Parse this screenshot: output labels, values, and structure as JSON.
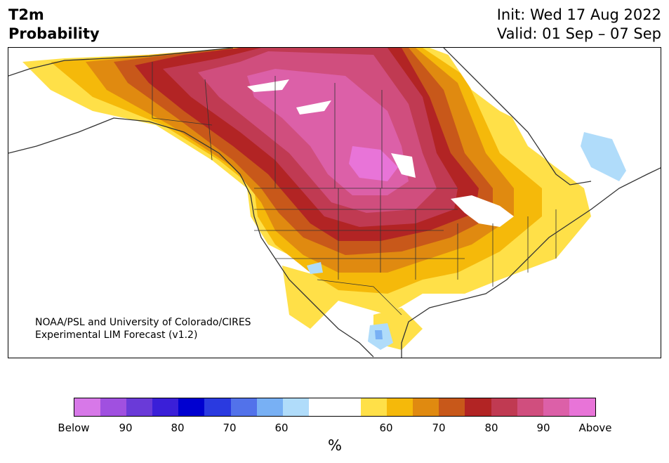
{
  "header": {
    "variable": "T2m",
    "product": "Probability",
    "init": "Init: Wed 17 Aug 2022",
    "valid": "Valid: 01 Sep – 07 Sep"
  },
  "map": {
    "region": "North America",
    "credit_line1": "NOAA/PSL and University of Colorado/CIRES",
    "credit_line2": "Experimental LIM Forecast (v1.2)"
  },
  "colorbar": {
    "colors": [
      "#d778e8",
      "#a050e0",
      "#6a3ad8",
      "#3a1fd8",
      "#0000d0",
      "#2a3ae0",
      "#5272ea",
      "#78b0f4",
      "#b0dcfa",
      "#ffffff",
      "#ffffff",
      "#ffe048",
      "#f5b90a",
      "#e08a10",
      "#c8581a",
      "#b22424",
      "#c03a52",
      "#d04e7e",
      "#dc60a8",
      "#e874d8"
    ],
    "tick_labels": [
      "Below",
      "90",
      "80",
      "70",
      "60",
      "60",
      "70",
      "80",
      "90",
      "Above"
    ],
    "unit": "%"
  }
}
